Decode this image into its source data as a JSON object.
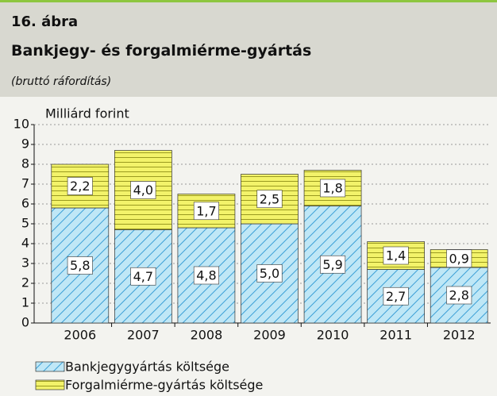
{
  "chart_data": {
    "type": "stacked_bar",
    "figure": "16. ábra",
    "title": "Bankjegy- és forgalmiérme-gyártás",
    "subtitle": "(bruttó ráfordítás)",
    "y_label": "Milliárd forint",
    "categories": [
      "2006",
      "2007",
      "2008",
      "2009",
      "2010",
      "2011",
      "2012"
    ],
    "series": [
      {
        "name": "Bankjegygyártás költsége",
        "color": "#3b9fd6",
        "values": [
          5.8,
          4.7,
          4.8,
          5.0,
          5.9,
          2.7,
          2.8
        ],
        "value_labels": [
          "5,8",
          "4,7",
          "4,8",
          "5,0",
          "5,9",
          "2,7",
          "2,8"
        ]
      },
      {
        "name": "Forgalmiérme-gyártás költsége",
        "color": "#f3f36a",
        "values": [
          2.2,
          4.0,
          1.7,
          2.5,
          1.8,
          1.4,
          0.9
        ],
        "value_labels": [
          "2,2",
          "4,0",
          "1,7",
          "2,5",
          "1,8",
          "1,4",
          "0,9"
        ]
      }
    ],
    "ylim": [
      0,
      10
    ],
    "yticks": [
      0,
      1,
      2,
      3,
      4,
      5,
      6,
      7,
      8,
      9,
      10
    ],
    "grid": true
  }
}
